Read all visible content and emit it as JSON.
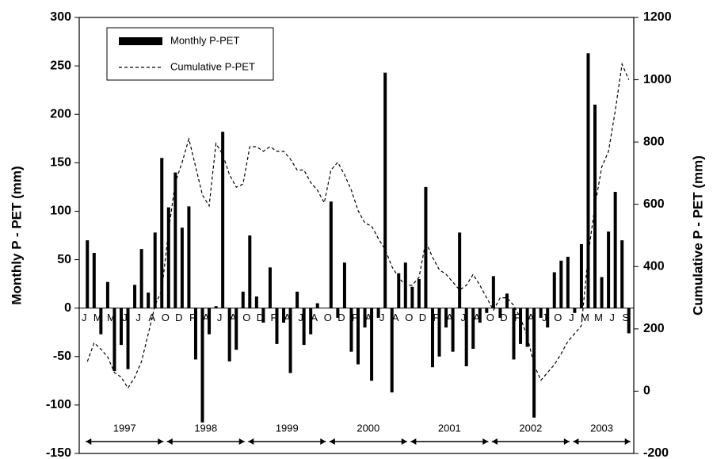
{
  "chart_data": {
    "type": "bar",
    "y_label": "Monthly P - PET (mm)",
    "y2_label": "Cumulative P - PET (mm)",
    "ylim": [
      -150,
      300
    ],
    "yticks": [
      -150,
      -100,
      -50,
      0,
      50,
      100,
      150,
      200,
      250,
      300
    ],
    "y2lim": [
      -200,
      1200
    ],
    "y2ticks": [
      -200,
      0,
      200,
      400,
      600,
      800,
      1000,
      1200
    ],
    "legend": "upper left",
    "years": [
      "1997",
      "1998",
      "1999",
      "2000",
      "2001",
      "2002",
      "2003"
    ],
    "categories": [
      "J",
      null,
      "M",
      null,
      "M",
      null,
      "J",
      null,
      "J",
      null,
      "A",
      null,
      "O",
      null,
      "D",
      null,
      "F",
      null,
      "A",
      null,
      "J",
      null,
      "A",
      null,
      "O",
      null,
      "D",
      null,
      "F",
      null,
      "A",
      null,
      "J",
      null,
      "A",
      null,
      "O",
      null,
      "D",
      null,
      "F",
      null,
      "A",
      null,
      "J",
      null,
      "A",
      null,
      "O",
      null,
      "D",
      null,
      "F",
      null,
      "A",
      null,
      "J",
      null,
      "A",
      null,
      "O",
      null,
      "D",
      null,
      "F",
      null,
      "A",
      null,
      "J",
      null,
      "O",
      null,
      "J",
      null,
      "M",
      null,
      "M",
      null,
      "J",
      null,
      "S"
    ],
    "series": [
      {
        "name": "Monthly P-PET",
        "type": "bar",
        "color": "#000000",
        "values": [
          70,
          57,
          -27,
          27,
          -65,
          -38,
          -63,
          24,
          61,
          16,
          78,
          155,
          104,
          140,
          83,
          105,
          -53,
          -118,
          -27,
          2,
          182,
          -55,
          -43,
          17,
          75,
          12,
          -15,
          42,
          -37,
          -15,
          -67,
          17,
          -38,
          -27,
          5,
          0,
          110,
          -10,
          47,
          -45,
          -58,
          -20,
          -75,
          -10,
          243,
          -87,
          36,
          47,
          22,
          30,
          125,
          -61,
          -50,
          -20,
          -45,
          78,
          -60,
          -42,
          -15,
          -5,
          33,
          -10,
          15,
          -53,
          -37,
          -40,
          -113,
          -10,
          -20,
          37,
          49,
          53,
          -5,
          66,
          263,
          210,
          32,
          79,
          120,
          70,
          -26
        ]
      },
      {
        "name": "Cumulative P-PET",
        "type": "line",
        "dashed": true,
        "axis": "y2",
        "color": "#000000",
        "values": [
          95,
          155,
          135,
          110,
          60,
          45,
          10,
          45,
          95,
          185,
          275,
          325,
          515,
          670,
          735,
          810,
          720,
          630,
          595,
          795,
          760,
          695,
          655,
          665,
          785,
          785,
          770,
          785,
          770,
          770,
          745,
          710,
          710,
          670,
          645,
          605,
          710,
          735,
          695,
          645,
          580,
          540,
          530,
          490,
          455,
          400,
          365,
          340,
          340,
          365,
          480,
          430,
          390,
          375,
          350,
          325,
          340,
          375,
          340,
          300,
          260,
          300,
          300,
          275,
          235,
          175,
          85,
          35,
          60,
          85,
          120,
          160,
          185,
          210,
          440,
          595,
          720,
          770,
          900,
          1050,
          1000
        ]
      }
    ]
  }
}
